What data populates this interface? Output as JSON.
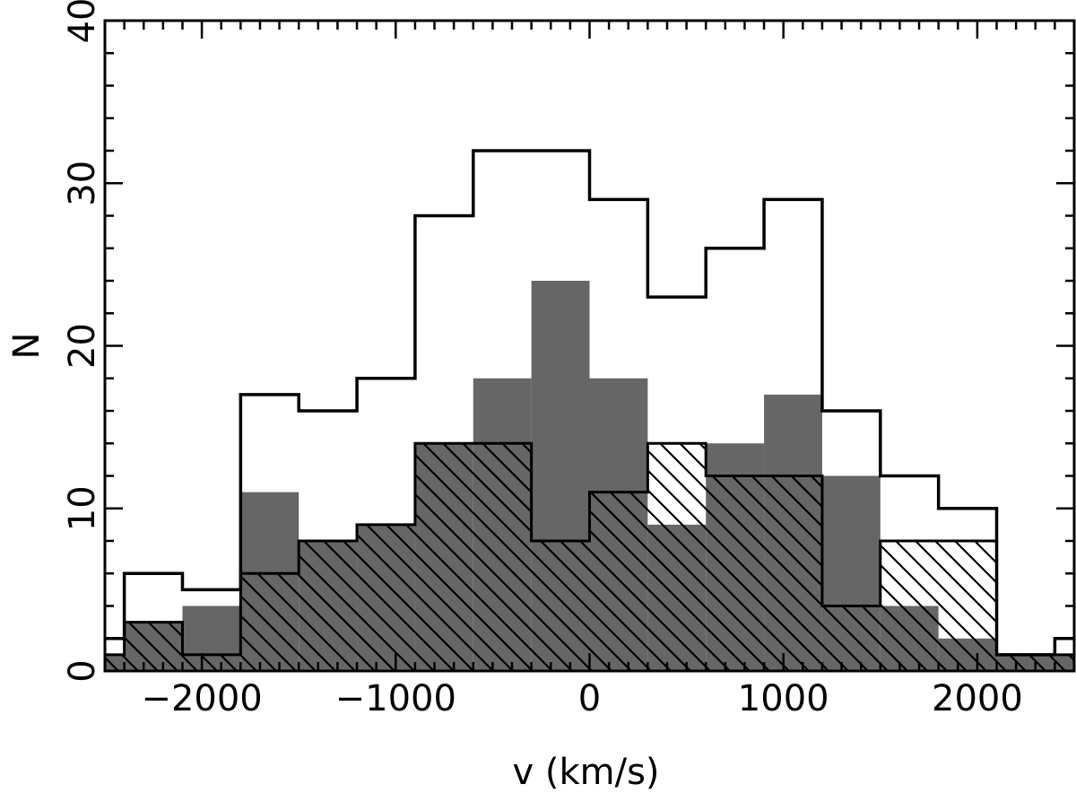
{
  "chart_data": {
    "type": "bar",
    "xlabel": "v (km/s)",
    "ylabel": "N",
    "xlim": [
      -2500,
      2500
    ],
    "ylim": [
      0,
      40
    ],
    "x_ticks": [
      -2000,
      -1000,
      0,
      1000,
      2000
    ],
    "x_tick_labels": [
      "−2000",
      "−1000",
      "0",
      "1000",
      "2000"
    ],
    "y_ticks": [
      0,
      10,
      20,
      30,
      40
    ],
    "y_tick_labels": [
      "0",
      "10",
      "20",
      "30",
      "40"
    ],
    "bin_edges": [
      -2500,
      -2400,
      -2100,
      -1800,
      -1500,
      -1200,
      -900,
      -600,
      -300,
      0,
      300,
      600,
      900,
      1200,
      1500,
      1800,
      2100,
      2400,
      2500
    ],
    "series": [
      {
        "style": "outline",
        "values": [
          2,
          6,
          5,
          17,
          16,
          18,
          28,
          32,
          32,
          29,
          23,
          26,
          29,
          16,
          12,
          10,
          1,
          2
        ]
      },
      {
        "style": "gray",
        "values": [
          1,
          3,
          4,
          11,
          8,
          9,
          14,
          18,
          24,
          18,
          9,
          14,
          17,
          12,
          4,
          2,
          1,
          1
        ]
      },
      {
        "style": "hatched",
        "values": [
          1,
          3,
          1,
          6,
          8,
          9,
          14,
          14,
          8,
          11,
          14,
          12,
          12,
          4,
          8,
          8,
          1,
          1
        ]
      }
    ],
    "colors": {
      "gray": "#666666",
      "line": "#000000"
    }
  }
}
